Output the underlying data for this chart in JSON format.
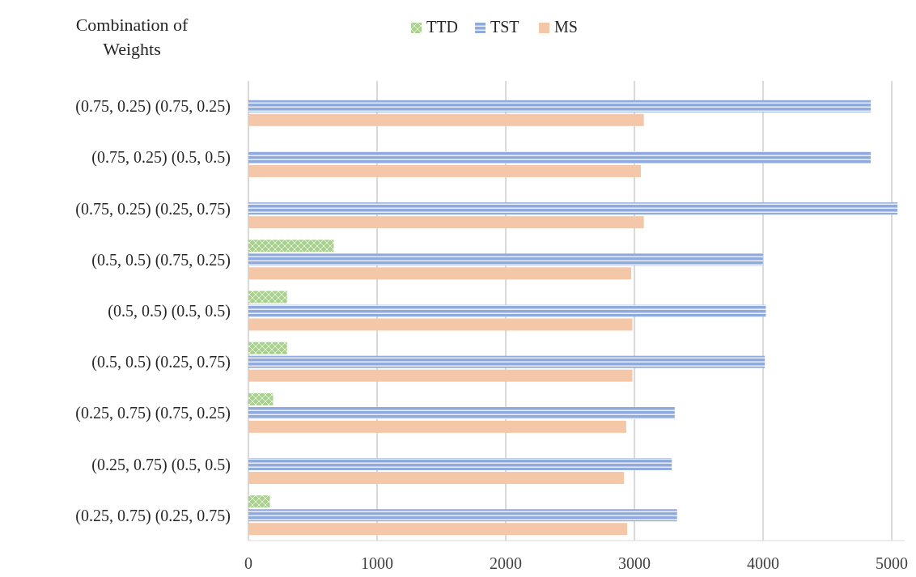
{
  "chart_data": {
    "type": "bar",
    "orientation": "horizontal",
    "ylabel": "Combination of Weights",
    "categories": [
      "(0.75, 0.25) (0.75, 0.25)",
      "(0.75, 0.25) (0.5, 0.5)",
      "(0.75, 0.25) (0.25, 0.75)",
      "(0.5, 0.5) (0.75, 0.25)",
      "(0.5, 0.5) (0.5, 0.5)",
      "(0.5, 0.5) (0.25, 0.75)",
      "(0.25, 0.75) (0.75, 0.25)",
      "(0.25, 0.75) (0.5, 0.5)",
      "(0.25, 0.75) (0.25, 0.75)"
    ],
    "series": [
      {
        "name": "TTD",
        "color": "#a9d18e",
        "values": [
          null,
          null,
          null,
          663,
          300,
          300,
          192,
          null,
          167
        ]
      },
      {
        "name": "TST",
        "color": "#8faadc",
        "values": [
          4837,
          4837,
          5044,
          3998,
          4021,
          4013,
          3313,
          3290,
          3331
        ]
      },
      {
        "name": "MS",
        "color": "#f4c7a8",
        "values": [
          3073,
          3050,
          3073,
          2975,
          2984,
          2984,
          2936,
          2919,
          2944
        ]
      }
    ],
    "xlim": [
      0,
      5100
    ],
    "xticks": [
      0,
      1000,
      2000,
      3000,
      4000,
      5000
    ],
    "grid": "x",
    "legend": "top"
  }
}
